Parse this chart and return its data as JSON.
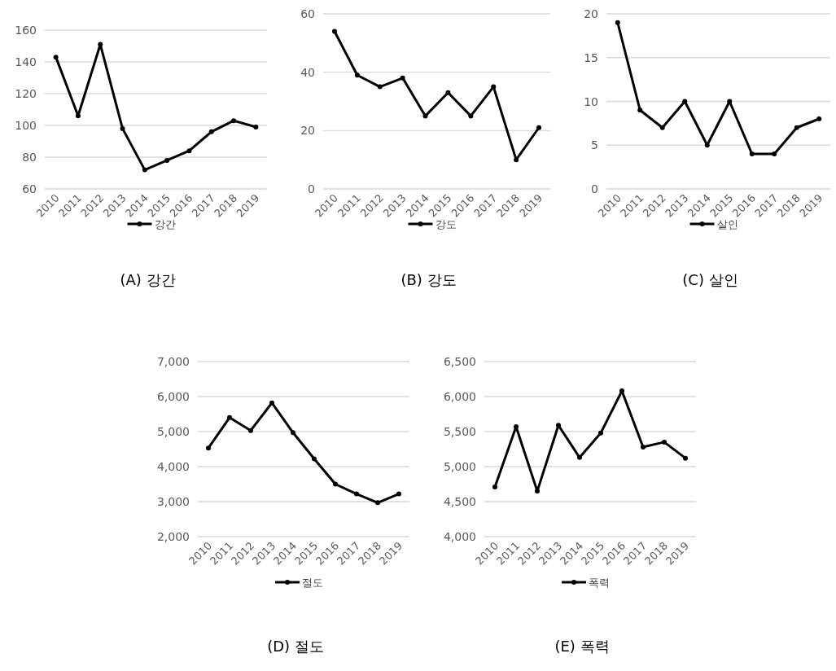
{
  "chart_data": [
    {
      "type": "line",
      "title": "(A) 강간",
      "categories": [
        "2010",
        "2011",
        "2012",
        "2013",
        "2014",
        "2015",
        "2016",
        "2017",
        "2018",
        "2019"
      ],
      "series": [
        {
          "name": "강간",
          "color": "#000000",
          "values": [
            143,
            106,
            151,
            98,
            72,
            78,
            84,
            96,
            103,
            99
          ]
        }
      ],
      "ylim": [
        60,
        160
      ],
      "yticks": [
        60,
        80,
        100,
        120,
        140,
        160
      ],
      "grid": "y",
      "legend": "bottom",
      "marker": "circle",
      "line_style": "solid"
    },
    {
      "type": "line",
      "title": "(B) 강도",
      "categories": [
        "2010",
        "2011",
        "2012",
        "2013",
        "2014",
        "2015",
        "2016",
        "2017",
        "2018",
        "2019"
      ],
      "series": [
        {
          "name": "강도",
          "color": "#000000",
          "values": [
            54,
            39,
            35,
            38,
            25,
            33,
            25,
            35,
            10,
            21
          ]
        }
      ],
      "ylim": [
        0,
        60
      ],
      "yticks": [
        0,
        20,
        40,
        60
      ],
      "grid": "y",
      "legend": "bottom",
      "marker": "circle",
      "line_style": "solid"
    },
    {
      "type": "line",
      "title": "(C) 살인",
      "categories": [
        "2010",
        "2011",
        "2012",
        "2013",
        "2014",
        "2015",
        "2016",
        "2017",
        "2018",
        "2019"
      ],
      "series": [
        {
          "name": "살인",
          "color": "#000000",
          "values": [
            19,
            9,
            7,
            10,
            5,
            10,
            4,
            4,
            7,
            8
          ]
        }
      ],
      "ylim": [
        0,
        20
      ],
      "yticks": [
        0,
        5,
        10,
        15,
        20
      ],
      "grid": "y",
      "legend": "bottom",
      "marker": "circle",
      "line_style": "solid"
    },
    {
      "type": "line",
      "title": "(D) 절도",
      "categories": [
        "2010",
        "2011",
        "2012",
        "2013",
        "2014",
        "2015",
        "2016",
        "2017",
        "2018",
        "2019"
      ],
      "series": [
        {
          "name": "절도",
          "color": "#000000",
          "values": [
            4530,
            5400,
            5030,
            5820,
            4970,
            4220,
            3500,
            3220,
            2970,
            3220
          ]
        }
      ],
      "ylim": [
        2000,
        7000
      ],
      "yticks": [
        {
          "value": 2000,
          "label": "2,000"
        },
        {
          "value": 3000,
          "label": "3,000"
        },
        {
          "value": 4000,
          "label": "4,000"
        },
        {
          "value": 5000,
          "label": "5,000"
        },
        {
          "value": 6000,
          "label": "6,000"
        },
        {
          "value": 7000,
          "label": "7,000"
        }
      ],
      "grid": "y",
      "legend": "bottom",
      "marker": "circle",
      "line_style": "solid"
    },
    {
      "type": "line",
      "title": "(E) 폭력",
      "categories": [
        "2010",
        "2011",
        "2012",
        "2013",
        "2014",
        "2015",
        "2016",
        "2017",
        "2018",
        "2019"
      ],
      "series": [
        {
          "name": "폭력",
          "color": "#000000",
          "values": [
            4710,
            5570,
            4650,
            5590,
            5130,
            5480,
            6080,
            5280,
            5350,
            5120
          ]
        }
      ],
      "ylim": [
        4000,
        6500
      ],
      "yticks": [
        {
          "value": 4000,
          "label": "4,000"
        },
        {
          "value": 4500,
          "label": "4,500"
        },
        {
          "value": 5000,
          "label": "5,000"
        },
        {
          "value": 5500,
          "label": "5,500"
        },
        {
          "value": 6000,
          "label": "6,000"
        },
        {
          "value": 6500,
          "label": "6,500"
        }
      ],
      "grid": "y",
      "legend": "bottom",
      "marker": "circle",
      "line_style": "solid"
    }
  ]
}
